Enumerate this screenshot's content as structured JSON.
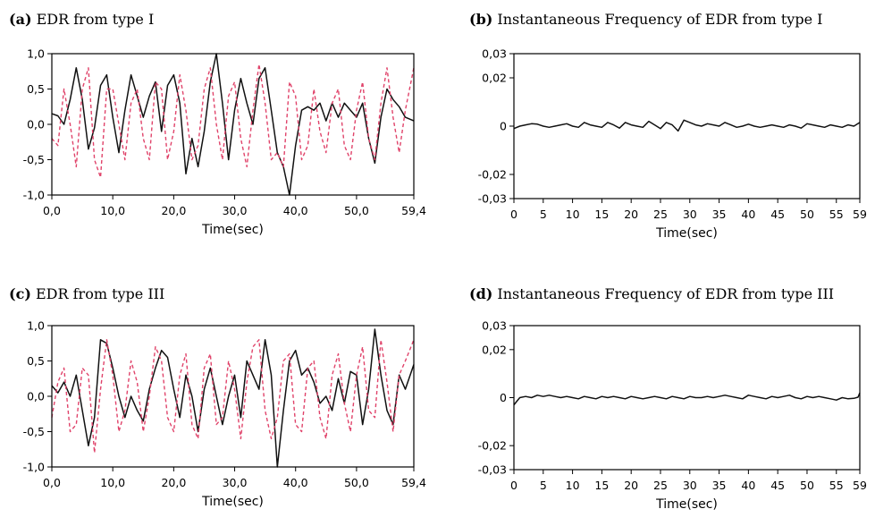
{
  "chart_data": [
    {
      "id": "a",
      "type": "line",
      "panel_letter": "(a)",
      "title": "EDR from type I",
      "xlabel": "Time(sec)",
      "ylabel": "",
      "xlim": [
        0,
        59.4
      ],
      "ylim": [
        -1.0,
        1.0
      ],
      "xticks": [
        0,
        10,
        20,
        30,
        40,
        50,
        59.4
      ],
      "xtick_labels": [
        "0,0",
        "10,0",
        "20,0",
        "30,0",
        "40,0",
        "50,0",
        "59,4"
      ],
      "yticks": [
        1.0,
        0.5,
        0.0,
        -0.5,
        -1.0
      ],
      "ytick_labels": [
        "1,0",
        "0,5",
        "0,0",
        "-0,5",
        "-1,0"
      ],
      "grid": false,
      "series": [
        {
          "style": "solid",
          "color": "#111111",
          "x": [
            0,
            1,
            2,
            3,
            4,
            5,
            6,
            7,
            8,
            9,
            10,
            11,
            12,
            13,
            14,
            15,
            16,
            17,
            18,
            19,
            20,
            21,
            22,
            23,
            24,
            25,
            26,
            27,
            28,
            29,
            30,
            31,
            32,
            33,
            34,
            35,
            36,
            37,
            38,
            39,
            40,
            41,
            42,
            43,
            44,
            45,
            46,
            47,
            48,
            49,
            50,
            51,
            52,
            53,
            54,
            55,
            56,
            57,
            58,
            59.4
          ],
          "y": [
            0.15,
            0.12,
            0.0,
            0.35,
            0.8,
            0.35,
            -0.35,
            -0.05,
            0.55,
            0.7,
            0.1,
            -0.4,
            0.2,
            0.7,
            0.4,
            0.1,
            0.4,
            0.6,
            -0.1,
            0.55,
            0.7,
            0.3,
            -0.7,
            -0.2,
            -0.6,
            -0.1,
            0.6,
            1.0,
            0.3,
            -0.5,
            0.2,
            0.65,
            0.3,
            0.0,
            0.65,
            0.8,
            0.2,
            -0.4,
            -0.6,
            -1.0,
            -0.3,
            0.2,
            0.25,
            0.2,
            0.3,
            0.05,
            0.3,
            0.1,
            0.3,
            0.2,
            0.1,
            0.3,
            -0.2,
            -0.55,
            0.1,
            0.5,
            0.35,
            0.25,
            0.1,
            0.05
          ]
        },
        {
          "style": "dashed",
          "color": "#e0436a",
          "x": [
            0,
            1,
            2,
            3,
            4,
            5,
            6,
            7,
            8,
            9,
            10,
            11,
            12,
            13,
            14,
            15,
            16,
            17,
            18,
            19,
            20,
            21,
            22,
            23,
            24,
            25,
            26,
            27,
            28,
            29,
            30,
            31,
            32,
            33,
            34,
            35,
            36,
            37,
            38,
            39,
            40,
            41,
            42,
            43,
            44,
            45,
            46,
            47,
            48,
            49,
            50,
            51,
            52,
            53,
            54,
            55,
            56,
            57,
            58,
            59.4
          ],
          "y": [
            -0.2,
            -0.3,
            0.5,
            0.0,
            -0.6,
            0.5,
            0.8,
            -0.5,
            -0.75,
            0.5,
            0.5,
            0.0,
            -0.5,
            0.3,
            0.5,
            -0.2,
            -0.5,
            0.6,
            0.5,
            -0.5,
            -0.1,
            0.7,
            0.2,
            -0.5,
            -0.3,
            0.5,
            0.8,
            0.0,
            -0.5,
            0.4,
            0.6,
            -0.2,
            -0.6,
            0.2,
            0.85,
            0.3,
            -0.5,
            -0.4,
            -0.6,
            0.6,
            0.4,
            -0.5,
            -0.3,
            0.5,
            -0.1,
            -0.4,
            0.3,
            0.5,
            -0.3,
            -0.5,
            0.2,
            0.6,
            -0.2,
            -0.5,
            0.3,
            0.8,
            0.1,
            -0.4,
            0.2,
            0.8
          ]
        }
      ]
    },
    {
      "id": "b",
      "type": "line",
      "panel_letter": "(b)",
      "title": "Instantaneous Frequency of EDR from type I",
      "xlabel": "Time(sec)",
      "ylabel": "",
      "xlim": [
        0,
        59
      ],
      "ylim": [
        -0.03,
        0.03
      ],
      "xticks": [
        0,
        5,
        10,
        15,
        20,
        25,
        30,
        35,
        40,
        45,
        50,
        55,
        59
      ],
      "xtick_labels": [
        "0",
        "5",
        "10",
        "15",
        "20",
        "25",
        "30",
        "35",
        "40",
        "45",
        "50",
        "55",
        "59"
      ],
      "yticks": [
        0.03,
        0.02,
        0,
        -0.02,
        -0.03
      ],
      "ytick_labels": [
        "0,03",
        "0,02",
        "0",
        "-0,02",
        "-0,03"
      ],
      "grid": false,
      "series": [
        {
          "style": "solid",
          "color": "#111111",
          "x": [
            0,
            1,
            2,
            3,
            4,
            5,
            6,
            7,
            8,
            9,
            10,
            11,
            12,
            13,
            14,
            15,
            16,
            17,
            18,
            19,
            20,
            21,
            22,
            23,
            24,
            25,
            26,
            27,
            28,
            29,
            30,
            31,
            32,
            33,
            34,
            35,
            36,
            37,
            38,
            39,
            40,
            41,
            42,
            43,
            44,
            45,
            46,
            47,
            48,
            49,
            50,
            51,
            52,
            53,
            54,
            55,
            56,
            57,
            58,
            59
          ],
          "y": [
            -0.001,
            0.0,
            0.0005,
            0.001,
            0.0008,
            0.0,
            -0.0005,
            0.0,
            0.0005,
            0.001,
            0.0,
            -0.0005,
            0.0015,
            0.0005,
            0.0,
            -0.0005,
            0.0015,
            0.0005,
            -0.0008,
            0.0015,
            0.0005,
            0.0,
            -0.0005,
            0.002,
            0.0005,
            -0.001,
            0.0015,
            0.0005,
            -0.002,
            0.0025,
            0.0015,
            0.0005,
            0.0,
            0.001,
            0.0005,
            0.0,
            0.0015,
            0.0005,
            -0.0005,
            0.0,
            0.0008,
            0.0,
            -0.0005,
            0.0,
            0.0005,
            0.0,
            -0.0005,
            0.0005,
            0.0,
            -0.0008,
            0.001,
            0.0005,
            0.0,
            -0.0005,
            0.0005,
            0.0,
            -0.0005,
            0.0005,
            0.0,
            0.0015
          ]
        }
      ]
    },
    {
      "id": "c",
      "type": "line",
      "panel_letter": "(c)",
      "title": "EDR from type III",
      "xlabel": "Time(sec)",
      "ylabel": "",
      "xlim": [
        0,
        59.4
      ],
      "ylim": [
        -1.0,
        1.0
      ],
      "xticks": [
        0,
        10,
        20,
        30,
        40,
        50,
        59.4
      ],
      "xtick_labels": [
        "0,0",
        "10,0",
        "20,0",
        "30,0",
        "40,0",
        "50,0",
        "59,4"
      ],
      "yticks": [
        1.0,
        0.5,
        0.0,
        -0.5,
        -1.0
      ],
      "ytick_labels": [
        "1,0",
        "0,5",
        "0,0",
        "-0,5",
        "-1,0"
      ],
      "grid": false,
      "series": [
        {
          "style": "solid",
          "color": "#111111",
          "x": [
            0,
            1,
            2,
            3,
            4,
            5,
            6,
            7,
            8,
            9,
            10,
            11,
            12,
            13,
            14,
            15,
            16,
            17,
            18,
            19,
            20,
            21,
            22,
            23,
            24,
            25,
            26,
            27,
            28,
            29,
            30,
            31,
            32,
            33,
            34,
            35,
            36,
            37,
            38,
            39,
            40,
            41,
            42,
            43,
            44,
            45,
            46,
            47,
            48,
            49,
            50,
            51,
            52,
            53,
            54,
            55,
            56,
            57,
            58,
            59.4
          ],
          "y": [
            0.15,
            0.05,
            0.2,
            0.0,
            0.3,
            -0.2,
            -0.7,
            -0.3,
            0.8,
            0.75,
            0.4,
            0.0,
            -0.3,
            0.0,
            -0.2,
            -0.35,
            0.1,
            0.4,
            0.65,
            0.55,
            0.1,
            -0.3,
            0.3,
            0.0,
            -0.5,
            0.1,
            0.4,
            0.0,
            -0.4,
            0.0,
            0.3,
            -0.3,
            0.5,
            0.3,
            0.1,
            0.8,
            0.3,
            -1.0,
            -0.2,
            0.5,
            0.65,
            0.3,
            0.4,
            0.2,
            -0.1,
            0.0,
            -0.2,
            0.25,
            -0.1,
            0.35,
            0.3,
            -0.4,
            0.1,
            0.95,
            0.3,
            -0.2,
            -0.4,
            0.3,
            0.1,
            0.45
          ]
        },
        {
          "style": "dashed",
          "color": "#e0436a",
          "x": [
            0,
            1,
            2,
            3,
            4,
            5,
            6,
            7,
            8,
            9,
            10,
            11,
            12,
            13,
            14,
            15,
            16,
            17,
            18,
            19,
            20,
            21,
            22,
            23,
            24,
            25,
            26,
            27,
            28,
            29,
            30,
            31,
            32,
            33,
            34,
            35,
            36,
            37,
            38,
            39,
            40,
            41,
            42,
            43,
            44,
            45,
            46,
            47,
            48,
            49,
            50,
            51,
            52,
            53,
            54,
            55,
            56,
            57,
            58,
            59.4
          ],
          "y": [
            -0.3,
            0.2,
            0.4,
            -0.5,
            -0.4,
            0.4,
            0.3,
            -0.8,
            0.1,
            0.8,
            0.3,
            -0.5,
            -0.2,
            0.5,
            0.2,
            -0.5,
            0.0,
            0.7,
            0.5,
            -0.3,
            -0.5,
            0.3,
            0.6,
            -0.4,
            -0.6,
            0.4,
            0.6,
            -0.4,
            -0.3,
            0.5,
            0.1,
            -0.6,
            0.2,
            0.7,
            0.8,
            -0.2,
            -0.6,
            -0.3,
            0.5,
            0.6,
            -0.4,
            -0.5,
            0.4,
            0.5,
            -0.3,
            -0.6,
            0.3,
            0.6,
            -0.1,
            -0.5,
            0.3,
            0.7,
            -0.2,
            -0.3,
            0.8,
            0.2,
            -0.5,
            0.3,
            0.5,
            0.8
          ]
        }
      ]
    },
    {
      "id": "d",
      "type": "line",
      "panel_letter": "(d)",
      "title": "Instantaneous Frequency of EDR from type III",
      "xlabel": "Time(sec)",
      "ylabel": "",
      "xlim": [
        0,
        59
      ],
      "ylim": [
        -0.03,
        0.03
      ],
      "xticks": [
        0,
        5,
        10,
        15,
        20,
        25,
        30,
        35,
        40,
        45,
        50,
        55,
        59
      ],
      "xtick_labels": [
        "0",
        "5",
        "10",
        "15",
        "20",
        "25",
        "30",
        "35",
        "40",
        "45",
        "50",
        "55",
        "59"
      ],
      "yticks": [
        0.03,
        0.02,
        0,
        -0.02,
        -0.03
      ],
      "ytick_labels": [
        "0,03",
        "0,02",
        "0",
        "-0,02",
        "-0,03"
      ],
      "grid": false,
      "series": [
        {
          "style": "solid",
          "color": "#111111",
          "x": [
            0,
            0.5,
            1,
            2,
            3,
            4,
            5,
            6,
            7,
            8,
            9,
            10,
            11,
            12,
            13,
            14,
            15,
            16,
            17,
            18,
            19,
            20,
            21,
            22,
            23,
            24,
            25,
            26,
            27,
            28,
            29,
            30,
            31,
            32,
            33,
            34,
            35,
            36,
            37,
            38,
            39,
            40,
            41,
            42,
            43,
            44,
            45,
            46,
            47,
            48,
            49,
            50,
            51,
            52,
            53,
            54,
            55,
            56,
            57,
            58,
            58.7,
            59
          ],
          "y": [
            -0.003,
            -0.0015,
            0.0,
            0.0005,
            0.0,
            0.001,
            0.0005,
            0.001,
            0.0005,
            0.0,
            0.0005,
            0.0,
            -0.0005,
            0.0005,
            0.0,
            -0.0005,
            0.0005,
            0.0,
            0.0005,
            0.0,
            -0.0005,
            0.0005,
            0.0,
            -0.0005,
            0.0,
            0.0005,
            0.0,
            -0.0005,
            0.0005,
            0.0,
            -0.0005,
            0.0005,
            0.0,
            0.0,
            0.0005,
            0.0,
            0.0005,
            0.001,
            0.0005,
            0.0,
            -0.0005,
            0.001,
            0.0005,
            0.0,
            -0.0005,
            0.0005,
            0.0,
            0.0005,
            0.001,
            0.0,
            -0.0005,
            0.0005,
            0.0,
            0.0005,
            0.0,
            -0.0005,
            -0.001,
            0.0,
            -0.0005,
            -0.0003,
            0.0002,
            0.002
          ]
        }
      ]
    }
  ]
}
